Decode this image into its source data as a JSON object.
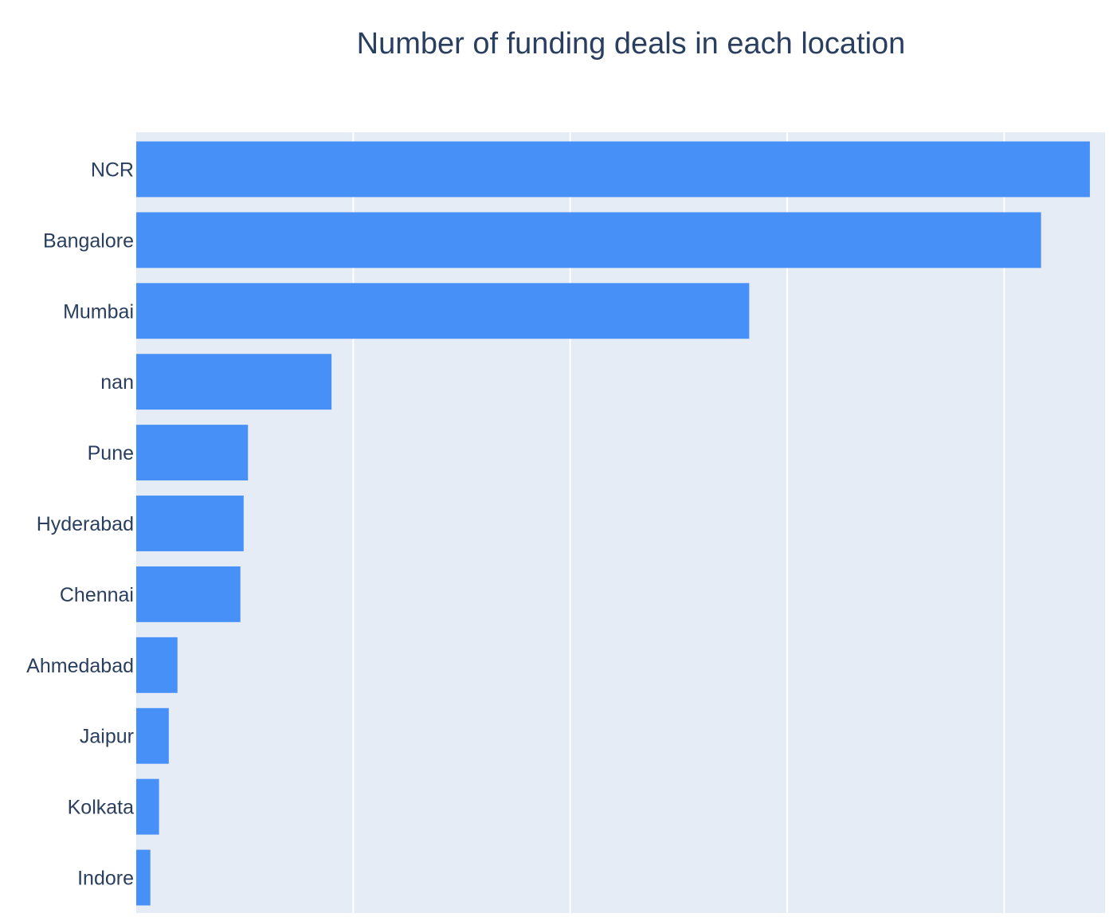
{
  "chart_data": {
    "type": "bar",
    "orientation": "horizontal",
    "title": "Number of funding deals in each location",
    "xlabel": "",
    "ylabel": "",
    "categories": [
      "NCR",
      "Bangalore",
      "Mumbai",
      "nan",
      "Pune",
      "Hyderabad",
      "Chennai",
      "Ahmedabad",
      "Jaipur",
      "Kolkata",
      "Indore"
    ],
    "values": [
      879,
      834,
      565,
      180,
      103,
      99,
      96,
      38,
      30,
      21,
      13
    ],
    "xlim": [
      0,
      893
    ],
    "xgrid": [
      200,
      400,
      600,
      800
    ],
    "x_tick_labels_visible": false,
    "grid": true,
    "legend": "none",
    "colors": {
      "bar": "#4690f8",
      "plot_background": "#e5ecf6",
      "grid": "#ffffff",
      "text": "#2a3f5f"
    }
  }
}
